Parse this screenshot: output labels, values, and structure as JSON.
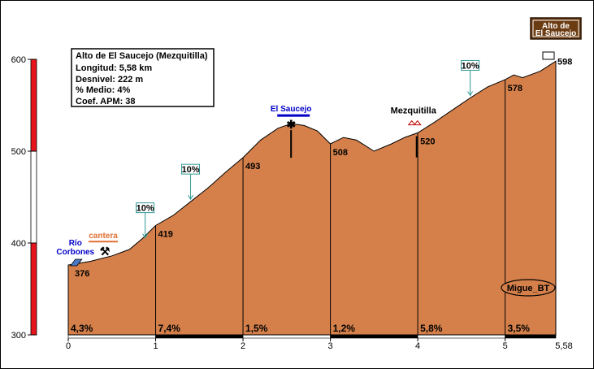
{
  "chart_data": {
    "type": "area",
    "title": "Alto de El Saucejo (Mezquitilla)",
    "info_lines": [
      "Longitud: 5,58 km",
      "Desnivel: 222 m",
      "% Medio: 4%",
      "Coef. APM: 38"
    ],
    "summit_sign": [
      "Alto de",
      "El Saucejo"
    ],
    "x": [
      0,
      0.25,
      0.5,
      0.7,
      0.85,
      1.0,
      1.2,
      1.4,
      1.6,
      1.8,
      2.0,
      2.2,
      2.4,
      2.55,
      2.7,
      2.85,
      3.0,
      3.15,
      3.3,
      3.5,
      3.7,
      3.85,
      4.0,
      4.2,
      4.4,
      4.6,
      4.8,
      5.0,
      5.1,
      5.2,
      5.4,
      5.58
    ],
    "y": [
      376,
      380,
      386,
      393,
      405,
      419,
      430,
      445,
      460,
      477,
      493,
      512,
      525,
      530,
      528,
      522,
      508,
      515,
      512,
      500,
      508,
      515,
      520,
      532,
      545,
      558,
      570,
      578,
      583,
      580,
      587,
      598
    ],
    "xlim": [
      0,
      5.58
    ],
    "ylim": [
      300,
      600
    ],
    "xticks": [
      0,
      1,
      2,
      3,
      4,
      5
    ],
    "xtick_labels": [
      "0",
      "1",
      "2",
      "3",
      "4",
      "5"
    ],
    "x_end_label": "5,58",
    "yticks": [
      300,
      400,
      500,
      600
    ],
    "ytick_labels": [
      "300",
      "400",
      "500",
      "600"
    ],
    "km_markers": [
      {
        "x": 1,
        "label": "419"
      },
      {
        "x": 2,
        "label": "493"
      },
      {
        "x": 3,
        "label": "508"
      },
      {
        "x": 4,
        "label": "520"
      },
      {
        "x": 5,
        "label": "578"
      }
    ],
    "start_label": "376",
    "end_label": "598",
    "segments": [
      {
        "from": 0,
        "to": 1,
        "gradient": "4,3%"
      },
      {
        "from": 1,
        "to": 2,
        "gradient": "7,4%"
      },
      {
        "from": 2,
        "to": 3,
        "gradient": "1,5%"
      },
      {
        "from": 3,
        "to": 4,
        "gradient": "1,2%"
      },
      {
        "from": 4,
        "to": 5,
        "gradient": "5,8%"
      },
      {
        "from": 5,
        "to": 5.58,
        "gradient": "3,5%"
      }
    ],
    "ramps": [
      {
        "x": 0.88,
        "y": 403,
        "label": "10%"
      },
      {
        "x": 1.4,
        "y": 445,
        "label": "10%"
      },
      {
        "x": 4.6,
        "y": 558,
        "label": "10%"
      }
    ],
    "places": [
      {
        "x": 0.1,
        "y": 377,
        "label": [
          "Río",
          "Corbones"
        ]
      },
      {
        "x": 0.4,
        "y": 383,
        "label": [
          "cantera"
        ]
      },
      {
        "x": 2.55,
        "y": 530,
        "label": [
          "El Saucejo"
        ]
      },
      {
        "x": 3.95,
        "y": 518,
        "label": [
          "Mezquitilla"
        ]
      }
    ],
    "credit": "Migue_BT",
    "colors": {
      "fill": "#d5804a",
      "outline": "#000000",
      "left_bar_red": "#e8141c",
      "ramp_box": "#2f9a96",
      "place_blue": "#0000c8",
      "cantera_text": "#e07030",
      "sign_brown": "#6b3b12"
    }
  }
}
